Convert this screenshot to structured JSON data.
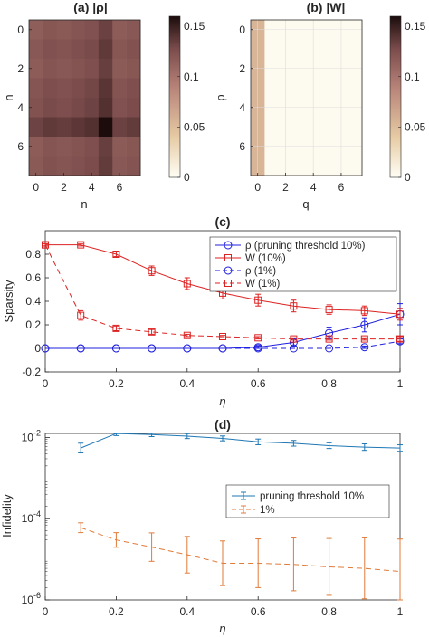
{
  "chart_data": [
    {
      "type": "heatmap",
      "panel": "a",
      "title": "(a) |ρ|",
      "xlabel": "n",
      "ylabel": "n",
      "x_ticks": [
        "0",
        "2",
        "4",
        "6"
      ],
      "y_ticks": [
        "0",
        "2",
        "4",
        "6"
      ],
      "colorbar_ticks": [
        "0",
        "0.05",
        "0.1",
        "0.15"
      ],
      "clim": [
        0,
        0.16
      ],
      "matrix": [
        [
          0.115,
          0.12,
          0.118,
          0.121,
          0.124,
          0.133,
          0.116,
          0.119
        ],
        [
          0.119,
          0.124,
          0.122,
          0.125,
          0.128,
          0.137,
          0.12,
          0.123
        ],
        [
          0.116,
          0.121,
          0.119,
          0.122,
          0.125,
          0.134,
          0.117,
          0.12
        ],
        [
          0.121,
          0.126,
          0.124,
          0.127,
          0.13,
          0.139,
          0.122,
          0.125
        ],
        [
          0.123,
          0.128,
          0.126,
          0.129,
          0.132,
          0.141,
          0.124,
          0.127
        ],
        [
          0.132,
          0.137,
          0.135,
          0.138,
          0.141,
          0.16,
          0.133,
          0.136
        ],
        [
          0.116,
          0.121,
          0.119,
          0.122,
          0.125,
          0.134,
          0.117,
          0.12
        ],
        [
          0.118,
          0.123,
          0.121,
          0.124,
          0.127,
          0.136,
          0.119,
          0.122
        ]
      ]
    },
    {
      "type": "heatmap",
      "panel": "b",
      "title": "(b) |W|",
      "xlabel": "q",
      "ylabel": "p",
      "x_ticks": [
        "0",
        "2",
        "4",
        "6"
      ],
      "y_ticks": [
        "0",
        "2",
        "4",
        "6"
      ],
      "colorbar_ticks": [
        "0",
        "0.05",
        "0.1",
        "0.15"
      ],
      "clim": [
        0,
        0.16
      ],
      "matrix": [
        [
          0.055,
          0.003,
          0.003,
          0.003,
          0.003,
          0.003,
          0.003,
          0.003
        ],
        [
          0.055,
          0.003,
          0.003,
          0.003,
          0.003,
          0.003,
          0.003,
          0.003
        ],
        [
          0.055,
          0.003,
          0.003,
          0.003,
          0.003,
          0.003,
          0.003,
          0.003
        ],
        [
          0.055,
          0.003,
          0.003,
          0.003,
          0.003,
          0.003,
          0.003,
          0.003
        ],
        [
          0.055,
          0.003,
          0.003,
          0.003,
          0.003,
          0.003,
          0.003,
          0.003
        ],
        [
          0.055,
          0.003,
          0.003,
          0.003,
          0.003,
          0.003,
          0.003,
          0.003
        ],
        [
          0.055,
          0.003,
          0.003,
          0.003,
          0.003,
          0.003,
          0.003,
          0.003
        ],
        [
          0.055,
          0.003,
          0.003,
          0.003,
          0.003,
          0.003,
          0.003,
          0.003
        ]
      ]
    },
    {
      "type": "line",
      "panel": "c",
      "title": "(c)",
      "xlabel": "η",
      "ylabel": "Sparsity",
      "xlim": [
        0,
        1
      ],
      "ylim": [
        -0.2,
        1
      ],
      "x_ticks": [
        "0",
        "0.2",
        "0.4",
        "0.6",
        "0.8",
        "1"
      ],
      "y_ticks": [
        "-0.2",
        "0",
        "0.2",
        "0.4",
        "0.6",
        "0.8"
      ],
      "grid": false,
      "legend_position": "top-right",
      "series": [
        {
          "name": "ρ (pruning threshold 10%)",
          "color": "#1f1fe0",
          "dash": "solid",
          "marker": "circle",
          "x": [
            0,
            0.1,
            0.2,
            0.3,
            0.4,
            0.5,
            0.6,
            0.7,
            0.8,
            0.9,
            1.0
          ],
          "y": [
            0,
            0,
            0,
            0,
            0,
            0,
            0.01,
            0.05,
            0.13,
            0.2,
            0.29
          ],
          "err": [
            0,
            0,
            0,
            0,
            0,
            0,
            0.01,
            0.03,
            0.05,
            0.06,
            0.09
          ]
        },
        {
          "name": "W (10%)",
          "color": "#dd2222",
          "dash": "solid",
          "marker": "square",
          "x": [
            0,
            0.1,
            0.2,
            0.3,
            0.4,
            0.5,
            0.6,
            0.7,
            0.8,
            0.9,
            1.0
          ],
          "y": [
            0.88,
            0.88,
            0.8,
            0.66,
            0.55,
            0.47,
            0.41,
            0.36,
            0.33,
            0.32,
            0.29
          ],
          "err": [
            0.01,
            0.01,
            0.02,
            0.04,
            0.05,
            0.05,
            0.05,
            0.05,
            0.04,
            0.04,
            0.05
          ]
        },
        {
          "name": "ρ (1%)",
          "color": "#1f1fe0",
          "dash": "dashed",
          "marker": "circle",
          "x": [
            0,
            0.1,
            0.2,
            0.3,
            0.4,
            0.5,
            0.6,
            0.7,
            0.8,
            0.9,
            1.0
          ],
          "y": [
            0,
            0,
            0,
            0,
            0,
            0,
            0,
            0,
            0,
            0.01,
            0.06
          ],
          "err": [
            0,
            0,
            0,
            0,
            0,
            0,
            0,
            0,
            0,
            0.01,
            0.02
          ]
        },
        {
          "name": "W (1%)",
          "color": "#dd2222",
          "dash": "dashed",
          "marker": "square",
          "x": [
            0,
            0.1,
            0.2,
            0.3,
            0.4,
            0.5,
            0.6,
            0.7,
            0.8,
            0.9,
            1.0
          ],
          "y": [
            0.88,
            0.28,
            0.17,
            0.14,
            0.11,
            0.1,
            0.09,
            0.08,
            0.08,
            0.08,
            0.08
          ],
          "err": [
            0.01,
            0.04,
            0.02,
            0.02,
            0.01,
            0.01,
            0.01,
            0.01,
            0.01,
            0.01,
            0.02
          ]
        }
      ]
    },
    {
      "type": "line",
      "panel": "d",
      "title": "(d)",
      "xlabel": "η",
      "ylabel": "Infidelity",
      "xlim": [
        0,
        1
      ],
      "ylim_log10": [
        -6,
        -1.9
      ],
      "log_y": true,
      "x_ticks": [
        "0",
        "0.2",
        "0.4",
        "0.6",
        "0.8",
        "1"
      ],
      "y_ticks": [
        {
          "base": "10",
          "exp": "-2",
          "value": -2
        },
        {
          "base": "10",
          "exp": "-4",
          "value": -4
        },
        {
          "base": "10",
          "exp": "-6",
          "value": -6
        }
      ],
      "legend_position": "center-right",
      "series": [
        {
          "name": "pruning threshold 10%",
          "color": "#1f77b4",
          "dash": "solid",
          "x": [
            0.1,
            0.2,
            0.3,
            0.4,
            0.5,
            0.6,
            0.7,
            0.8,
            0.9,
            1.0
          ],
          "y": [
            0.0055,
            0.0125,
            0.0118,
            0.0108,
            0.0095,
            0.0078,
            0.0072,
            0.0063,
            0.0058,
            0.0055
          ],
          "log_err": [
            0.12,
            0.05,
            0.05,
            0.06,
            0.06,
            0.07,
            0.07,
            0.07,
            0.08,
            0.08
          ]
        },
        {
          "name": "1%",
          "color": "#e07b39",
          "dash": "dashed",
          "x": [
            0.1,
            0.2,
            0.3,
            0.4,
            0.5,
            0.6,
            0.7,
            0.8,
            0.9,
            1.0
          ],
          "y": [
            6e-05,
            3e-05,
            2e-05,
            1.3e-05,
            8e-06,
            8e-06,
            7.5e-06,
            6.5e-06,
            6e-06,
            5e-06
          ],
          "log_err": [
            0.12,
            0.18,
            0.35,
            0.45,
            0.55,
            0.6,
            0.65,
            0.7,
            0.75,
            0.8
          ]
        }
      ]
    }
  ]
}
